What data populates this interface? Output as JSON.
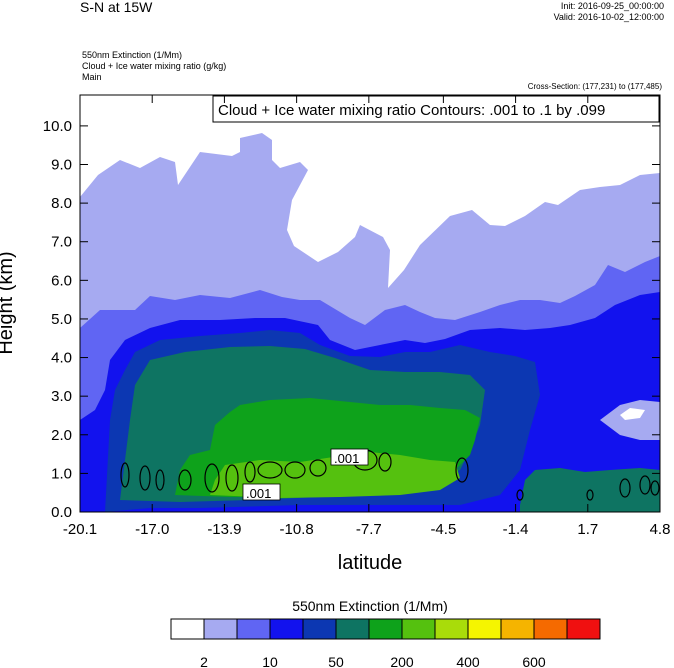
{
  "header": {
    "title": "S-N at 15W",
    "init": "Init: 2016-09-25_00:00:00",
    "valid": "Valid: 2016-10-02_12:00:00",
    "field1": "550nm Extinction   (1/Mm)",
    "field2": "Cloud + Ice water mixing ratio   (g/kg)",
    "field3": "Main",
    "cross_section": "Cross-Section: (177,231) to (177,485)"
  },
  "chart_data": {
    "type": "heatmap",
    "title": "",
    "xlabel": "latitude",
    "ylabel": "Height (km)",
    "xlim": [
      -20.1,
      4.8
    ],
    "ylim": [
      0.0,
      10.8
    ],
    "x_ticks": [
      "-20.1",
      "-17.0",
      "-13.9",
      "-10.8",
      "-7.7",
      "-4.5",
      "-1.4",
      "1.7",
      "4.8"
    ],
    "y_ticks": [
      "0.0",
      "1.0",
      "2.0",
      "3.0",
      "4.0",
      "5.0",
      "6.0",
      "7.0",
      "8.0",
      "9.0",
      "10.0"
    ],
    "contour_label": "Cloud + Ice water mixing ratio Contours: .001 to .1 by .099",
    "contour_line_labels": [
      ".001",
      ".001"
    ],
    "colorbar": {
      "title": "550nm Extinction  (1/Mm)",
      "colors": [
        "#ffffff",
        "#a6aaf1",
        "#6065f3",
        "#1212ee",
        "#0c37b2",
        "#0e7462",
        "#0ea21b",
        "#55c10f",
        "#a9dc0a",
        "#f5f500",
        "#f5b400",
        "#f56a00",
        "#f01010"
      ],
      "tick_labels": [
        "2",
        "10",
        "50",
        "200",
        "400",
        "600"
      ]
    },
    "series": [
      {
        "name": "",
        "band_top_km": [
          [
            -20.1,
            8.3
          ],
          [
            -17.5,
            9.2
          ],
          [
            -16.0,
            9.5
          ],
          [
            -14.5,
            9.0
          ],
          [
            -13.0,
            9.6
          ],
          [
            -11.5,
            8.9
          ],
          [
            -10.0,
            7.1
          ],
          [
            -8.0,
            6.6
          ],
          [
            -6.5,
            6.6
          ],
          [
            -5.5,
            5.5
          ],
          [
            -4.5,
            7.2
          ],
          [
            -3.0,
            7.7
          ],
          [
            -1.5,
            7.2
          ],
          [
            0.0,
            7.6
          ],
          [
            1.5,
            8.0
          ],
          [
            3.0,
            8.5
          ],
          [
            4.8,
            8.7
          ]
        ]
      }
    ]
  }
}
